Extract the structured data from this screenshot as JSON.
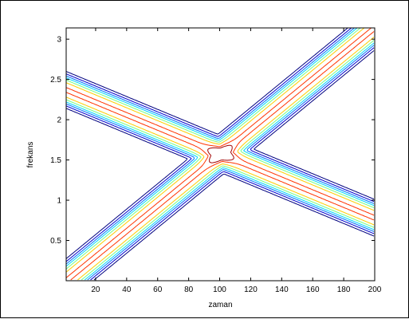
{
  "chart_data": {
    "type": "contour",
    "title": "",
    "xlabel": "zaman",
    "ylabel": "frekans",
    "xlim": [
      1,
      200
    ],
    "ylim": [
      0,
      3.14
    ],
    "xticks": [
      20,
      40,
      60,
      80,
      100,
      120,
      140,
      160,
      180,
      200
    ],
    "yticks": [
      0.5,
      1,
      1.5,
      2,
      2.5,
      3
    ],
    "xtick_labels": [
      "20",
      "40",
      "60",
      "80",
      "100",
      "120",
      "140",
      "160",
      "180",
      "200"
    ],
    "ytick_labels": [
      "0.5",
      "1",
      "1.5",
      "2",
      "2.5",
      "3"
    ],
    "grid": false,
    "series": [
      {
        "kind": "chirp-ridge",
        "x": [
          1,
          200
        ],
        "y": [
          0,
          3.14
        ]
      },
      {
        "kind": "chirp-ridge",
        "x": [
          1,
          200
        ],
        "y": [
          2.37,
          0.78
        ]
      }
    ],
    "center_peak": {
      "x": 100,
      "y": 1.57
    },
    "colors": [
      "#00007f",
      "#0000d0",
      "#0074ff",
      "#00d8ff",
      "#74ff84",
      "#ffcc00",
      "#ff3300",
      "#a00000"
    ]
  }
}
